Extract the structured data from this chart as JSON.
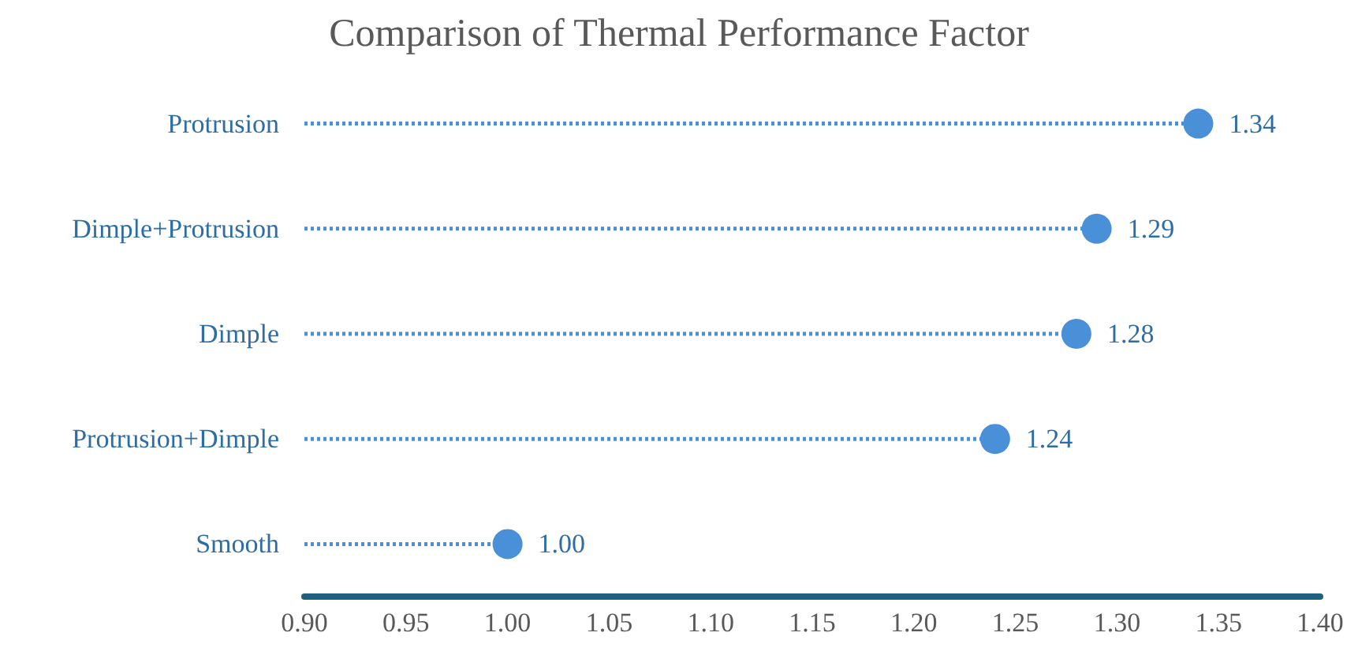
{
  "chart_data": {
    "type": "lollipop",
    "orientation": "horizontal",
    "title": "Comparison of Thermal Performance Factor",
    "categories": [
      "Protrusion",
      "Dimple+Protrusion",
      "Dimple",
      "Protrusion+Dimple",
      "Smooth"
    ],
    "values": [
      1.34,
      1.29,
      1.28,
      1.24,
      1.0
    ],
    "color": "#4a90d9",
    "xlim": [
      0.9,
      1.4
    ],
    "xticks": [
      {
        "value": 0.9,
        "label": "0.90"
      },
      {
        "value": 0.95,
        "label": "0.95"
      },
      {
        "value": 1.0,
        "label": "1.00"
      },
      {
        "value": 1.05,
        "label": "1.05"
      },
      {
        "value": 1.1,
        "label": "1.10"
      },
      {
        "value": 1.15,
        "label": "1.15"
      },
      {
        "value": 1.2,
        "label": "1.20"
      },
      {
        "value": 1.25,
        "label": "1.25"
      },
      {
        "value": 1.3,
        "label": "1.30"
      },
      {
        "value": 1.35,
        "label": "1.35"
      },
      {
        "value": 1.4,
        "label": "1.40"
      }
    ],
    "value_labels": [
      "1.34",
      "1.29",
      "1.28",
      "1.24",
      "1.00"
    ],
    "marker": "circle",
    "line_style": "dotted",
    "grid": false
  }
}
